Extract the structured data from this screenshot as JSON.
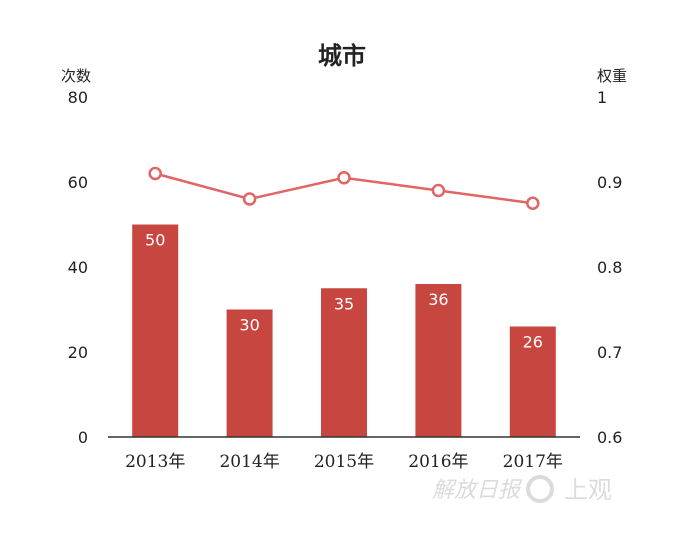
{
  "chart_data": {
    "type": "bar",
    "title": "城市",
    "categories": [
      "2013年",
      "2014年",
      "2015年",
      "2016年",
      "2017年"
    ],
    "series": [
      {
        "type": "bar",
        "axis": "left",
        "values": [
          50,
          30,
          35,
          36,
          26
        ],
        "color": "#c84640"
      },
      {
        "type": "line",
        "axis": "right",
        "values": [
          0.91,
          0.88,
          0.905,
          0.89,
          0.875
        ],
        "color": "#e06565"
      }
    ],
    "ylabel": "次数",
    "ylim": [
      0,
      80
    ],
    "yticks": [
      "0",
      "20",
      "40",
      "60",
      "80"
    ],
    "y2label": "权重",
    "y2lim": [
      0.6,
      1
    ],
    "y2ticks": [
      "0.6",
      "0.7",
      "0.8",
      "0.9",
      "1"
    ],
    "data_labels": [
      "50",
      "30",
      "35",
      "36",
      "26"
    ],
    "grid": false,
    "legend": "none"
  },
  "watermark": {
    "text": "解放日报",
    "text2": "上观"
  }
}
